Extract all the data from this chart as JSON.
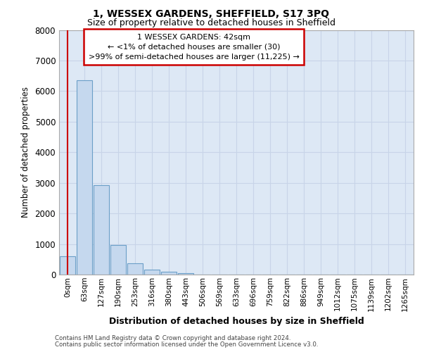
{
  "title_line1": "1, WESSEX GARDENS, SHEFFIELD, S17 3PQ",
  "title_line2": "Size of property relative to detached houses in Sheffield",
  "xlabel": "Distribution of detached houses by size in Sheffield",
  "ylabel": "Number of detached properties",
  "categories": [
    "0sqm",
    "63sqm",
    "127sqm",
    "190sqm",
    "253sqm",
    "316sqm",
    "380sqm",
    "443sqm",
    "506sqm",
    "569sqm",
    "633sqm",
    "696sqm",
    "759sqm",
    "822sqm",
    "886sqm",
    "949sqm",
    "1012sqm",
    "1075sqm",
    "1139sqm",
    "1202sqm",
    "1265sqm"
  ],
  "bar_heights": [
    600,
    6350,
    2920,
    970,
    360,
    165,
    90,
    55,
    0,
    0,
    0,
    0,
    0,
    0,
    0,
    0,
    0,
    0,
    0,
    0,
    0
  ],
  "bar_color": "#c5d8ee",
  "bar_edge_color": "#6b9fc8",
  "annotation_line1": "1 WESSEX GARDENS: 42sqm",
  "annotation_line2": "← <1% of detached houses are smaller (30)",
  "annotation_line3": ">99% of semi-detached houses are larger (11,225) →",
  "annotation_box_edge_color": "#cc0000",
  "property_line_color": "#cc0000",
  "ylim": [
    0,
    8000
  ],
  "yticks": [
    0,
    1000,
    2000,
    3000,
    4000,
    5000,
    6000,
    7000,
    8000
  ],
  "grid_color": "#c8d4e8",
  "background_color": "#dde8f5",
  "footer_line1": "Contains HM Land Registry data © Crown copyright and database right 2024.",
  "footer_line2": "Contains public sector information licensed under the Open Government Licence v3.0."
}
